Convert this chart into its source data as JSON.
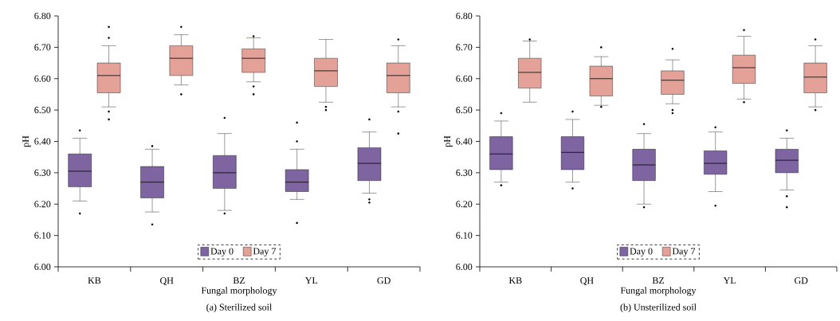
{
  "chart_data": [
    {
      "type": "box",
      "title": "(a) Sterilized soil",
      "xlabel": "Fungal morphology",
      "ylabel": "pH",
      "categories": [
        "KB",
        "QH",
        "BZ",
        "YL",
        "GD"
      ],
      "ylim": [
        6.0,
        6.8
      ],
      "yticks": [
        {
          "value": 6.0,
          "label": "6.00"
        },
        {
          "value": 6.1,
          "label": "6.10"
        },
        {
          "value": 6.2,
          "label": "6.20"
        },
        {
          "value": 6.3,
          "label": "6.30"
        },
        {
          "value": 6.4,
          "label": "6.40"
        },
        {
          "value": 6.5,
          "label": "6.50"
        },
        {
          "value": 6.6,
          "label": "6.60"
        },
        {
          "value": 6.7,
          "label": "6.70"
        },
        {
          "value": 6.8,
          "label": "6.80"
        }
      ],
      "legend": "bottom",
      "series": [
        {
          "name": "Day 0",
          "color": "#7e65a1",
          "boxes": [
            {
              "low": 6.21,
              "q1": 6.255,
              "median": 6.305,
              "q3": 6.36,
              "high": 6.41,
              "outliers": [
                6.435,
                6.17
              ]
            },
            {
              "low": 6.175,
              "q1": 6.22,
              "median": 6.27,
              "q3": 6.32,
              "high": 6.375,
              "outliers": [
                6.385,
                6.135
              ]
            },
            {
              "low": 6.18,
              "q1": 6.25,
              "median": 6.3,
              "q3": 6.355,
              "high": 6.425,
              "outliers": [
                6.475,
                6.17
              ]
            },
            {
              "low": 6.215,
              "q1": 6.24,
              "median": 6.27,
              "q3": 6.31,
              "high": 6.375,
              "outliers": [
                6.46,
                6.4,
                6.14
              ]
            },
            {
              "low": 6.235,
              "q1": 6.275,
              "median": 6.33,
              "q3": 6.38,
              "high": 6.43,
              "outliers": [
                6.47,
                6.215,
                6.205
              ]
            }
          ]
        },
        {
          "name": "Day 7",
          "color": "#e4a198",
          "boxes": [
            {
              "low": 6.51,
              "q1": 6.555,
              "median": 6.61,
              "q3": 6.65,
              "high": 6.705,
              "outliers": [
                6.765,
                6.73,
                6.495,
                6.47
              ]
            },
            {
              "low": 6.58,
              "q1": 6.61,
              "median": 6.665,
              "q3": 6.705,
              "high": 6.74,
              "outliers": [
                6.765,
                6.55
              ]
            },
            {
              "low": 6.59,
              "q1": 6.62,
              "median": 6.665,
              "q3": 6.695,
              "high": 6.73,
              "outliers": [
                6.735,
                6.575,
                6.55
              ]
            },
            {
              "low": 6.525,
              "q1": 6.575,
              "median": 6.625,
              "q3": 6.665,
              "high": 6.725,
              "outliers": [
                6.51,
                6.5
              ]
            },
            {
              "low": 6.51,
              "q1": 6.555,
              "median": 6.61,
              "q3": 6.65,
              "high": 6.705,
              "outliers": [
                6.725,
                6.495,
                6.425
              ]
            }
          ]
        }
      ]
    },
    {
      "type": "box",
      "title": "(b) Unsterilized soil",
      "xlabel": "Fungal morphology",
      "ylabel": "pH",
      "categories": [
        "KB",
        "QH",
        "BZ",
        "YL",
        "GD"
      ],
      "ylim": [
        6.0,
        6.8
      ],
      "yticks": [
        {
          "value": 6.0,
          "label": "6.00"
        },
        {
          "value": 6.1,
          "label": "6.10"
        },
        {
          "value": 6.2,
          "label": "6.20"
        },
        {
          "value": 6.3,
          "label": "6.30"
        },
        {
          "value": 6.4,
          "label": "6.40"
        },
        {
          "value": 6.5,
          "label": "6.50"
        },
        {
          "value": 6.6,
          "label": "6.60"
        },
        {
          "value": 6.7,
          "label": "6.70"
        },
        {
          "value": 6.8,
          "label": "6.80"
        }
      ],
      "legend": "bottom",
      "series": [
        {
          "name": "Day 0",
          "color": "#7e65a1",
          "boxes": [
            {
              "low": 6.27,
              "q1": 6.31,
              "median": 6.36,
              "q3": 6.415,
              "high": 6.465,
              "outliers": [
                6.49,
                6.26
              ]
            },
            {
              "low": 6.27,
              "q1": 6.31,
              "median": 6.365,
              "q3": 6.415,
              "high": 6.47,
              "outliers": [
                6.495,
                6.25
              ]
            },
            {
              "low": 6.2,
              "q1": 6.275,
              "median": 6.325,
              "q3": 6.375,
              "high": 6.425,
              "outliers": [
                6.455,
                6.19
              ]
            },
            {
              "low": 6.24,
              "q1": 6.295,
              "median": 6.33,
              "q3": 6.37,
              "high": 6.43,
              "outliers": [
                6.445,
                6.195
              ]
            },
            {
              "low": 6.245,
              "q1": 6.3,
              "median": 6.34,
              "q3": 6.375,
              "high": 6.41,
              "outliers": [
                6.435,
                6.225,
                6.19
              ]
            }
          ]
        },
        {
          "name": "Day 7",
          "color": "#e4a198",
          "boxes": [
            {
              "low": 6.525,
              "q1": 6.57,
              "median": 6.62,
              "q3": 6.665,
              "high": 6.72,
              "outliers": [
                6.725
              ]
            },
            {
              "low": 6.515,
              "q1": 6.545,
              "median": 6.6,
              "q3": 6.64,
              "high": 6.67,
              "outliers": [
                6.7,
                6.51
              ]
            },
            {
              "low": 6.52,
              "q1": 6.55,
              "median": 6.595,
              "q3": 6.625,
              "high": 6.66,
              "outliers": [
                6.695,
                6.5,
                6.49
              ]
            },
            {
              "low": 6.535,
              "q1": 6.585,
              "median": 6.635,
              "q3": 6.675,
              "high": 6.735,
              "outliers": [
                6.755,
                6.525
              ]
            },
            {
              "low": 6.51,
              "q1": 6.555,
              "median": 6.605,
              "q3": 6.65,
              "high": 6.705,
              "outliers": [
                6.725,
                6.5
              ]
            }
          ]
        }
      ]
    }
  ]
}
